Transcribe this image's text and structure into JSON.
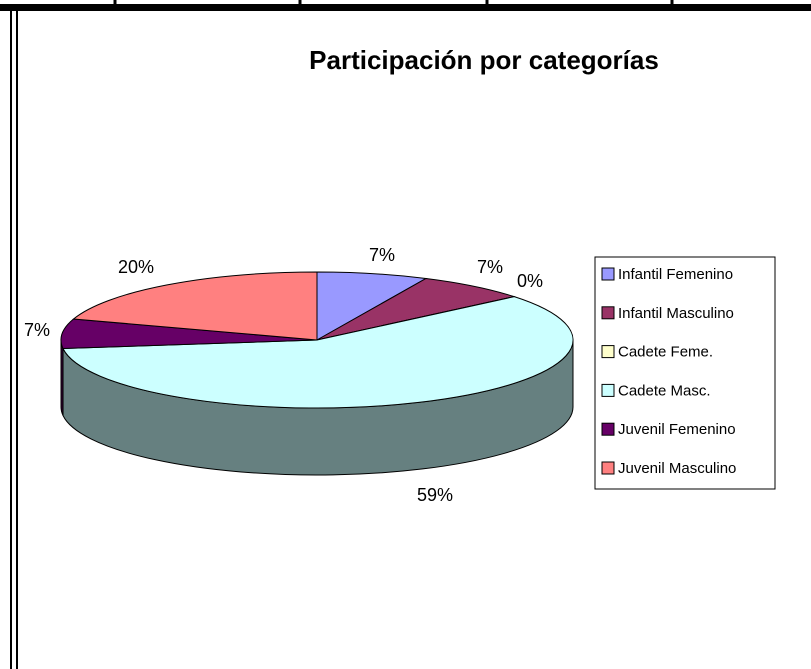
{
  "chart_data": {
    "type": "pie3d",
    "title": "Participación por categorías",
    "categories": [
      "Infantil Femenino",
      "Infantil Masculino",
      "Cadete Feme.",
      "Cadete Masc.",
      "Juvenil Femenino",
      "Juvenil Masculino"
    ],
    "values": [
      7,
      7,
      0,
      59,
      7,
      20
    ],
    "value_labels": [
      "7%",
      "7%",
      "0%",
      "59%",
      "7%",
      "20%"
    ],
    "colors": [
      "#9999ff",
      "#993366",
      "#ffffcc",
      "#ccffff",
      "#660066",
      "#ff8080"
    ],
    "legend": "right"
  }
}
